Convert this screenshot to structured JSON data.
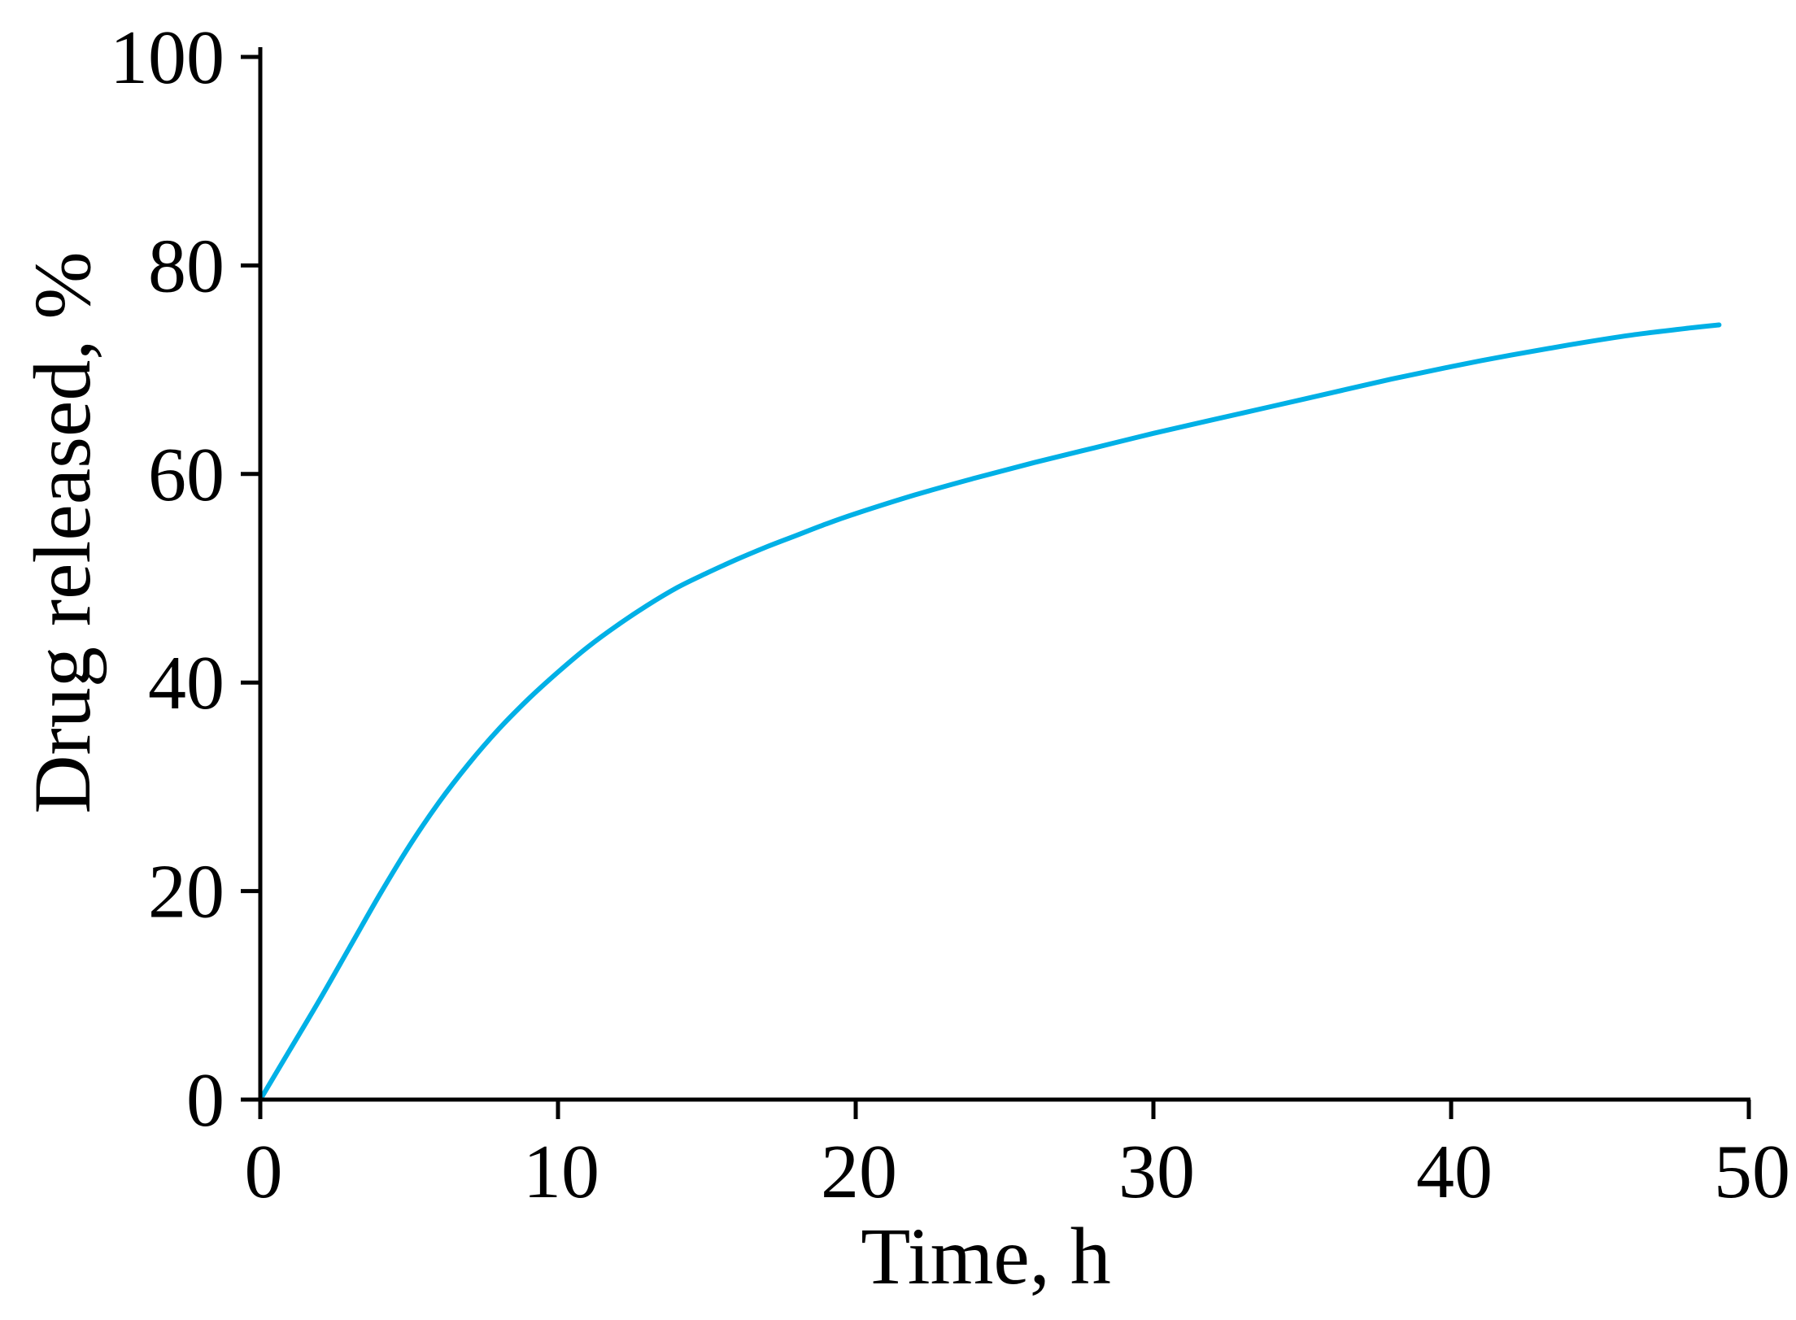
{
  "chart_data": {
    "type": "line",
    "xlabel": "Time, h",
    "ylabel": "Drug released, %",
    "xlim": [
      0,
      50
    ],
    "ylim": [
      0,
      100
    ],
    "xticks": [
      0,
      10,
      20,
      30,
      40,
      50
    ],
    "yticks": [
      0,
      20,
      40,
      60,
      80,
      100
    ],
    "grid": false,
    "series": [
      {
        "color": "#00b0e6",
        "x": [
          0,
          1,
          2,
          3,
          4,
          5,
          6,
          7,
          8,
          9,
          10,
          11,
          12,
          13,
          14,
          15,
          16,
          17,
          18,
          19,
          20,
          22,
          24,
          26,
          28,
          30,
          32,
          34,
          36,
          38,
          40,
          42,
          44,
          46,
          48,
          49
        ],
        "y": [
          0,
          4.8,
          9.6,
          14.6,
          19.6,
          24.3,
          28.5,
          32.2,
          35.5,
          38.4,
          41.0,
          43.4,
          45.5,
          47.4,
          49.1,
          50.5,
          51.8,
          53.0,
          54.1,
          55.2,
          56.2,
          58.0,
          59.6,
          61.1,
          62.5,
          63.9,
          65.2,
          66.5,
          67.8,
          69.1,
          70.3,
          71.4,
          72.4,
          73.3,
          74.0,
          74.3
        ]
      }
    ]
  }
}
